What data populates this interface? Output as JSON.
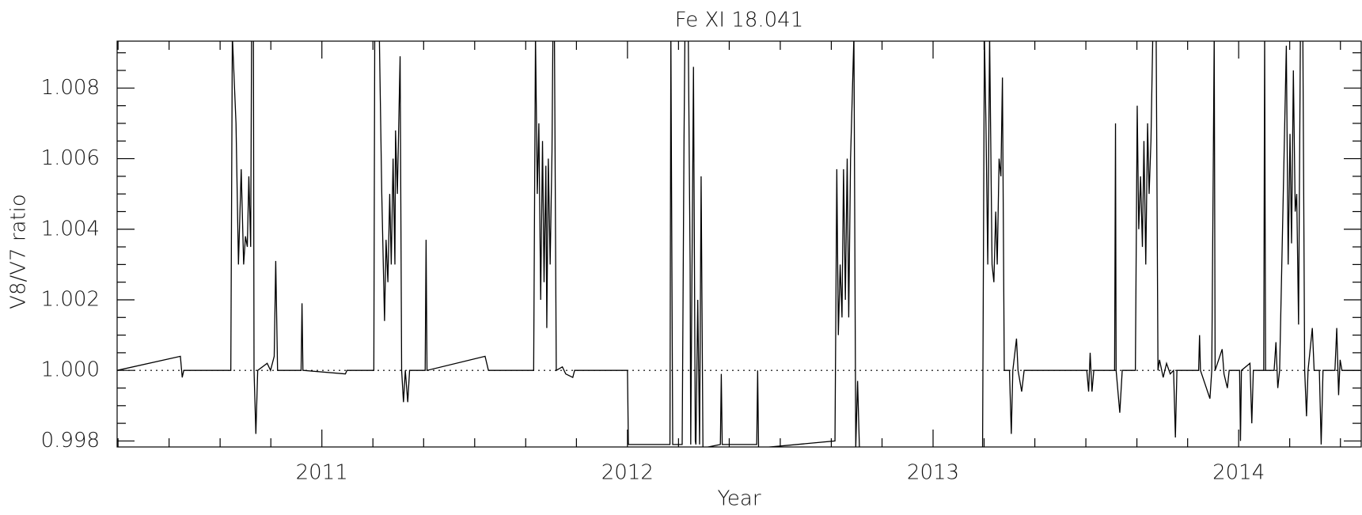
{
  "chart_data": {
    "type": "line",
    "title": "Fe XI 18.041",
    "x_label": "Year",
    "y_label": "V8/V7 ratio",
    "xlim": [
      2010.33,
      2014.401
    ],
    "ylim": [
      0.99783,
      1.00933
    ],
    "xticks": [
      2011,
      2012,
      2013,
      2014
    ],
    "xminorticks": [
      2010.333,
      2010.5,
      2010.667,
      2010.833,
      2011.167,
      2011.333,
      2011.5,
      2011.667,
      2011.833,
      2012.167,
      2012.333,
      2012.5,
      2012.667,
      2012.833,
      2013.167,
      2013.333,
      2013.5,
      2013.667,
      2013.833,
      2014.167,
      2014.333
    ],
    "yticks": [
      0.998,
      {
        "value": 1,
        "label": "1.000"
      },
      1.002,
      1.004,
      1.006,
      1.008
    ],
    "yminorticks": [
      0.9985,
      0.999,
      0.9995,
      1.0005,
      1.001,
      1.0015,
      1.0025,
      1.003,
      1.0035,
      1.0045,
      1.005,
      1.0055,
      1.0065,
      1.007,
      1.0075,
      1.0085,
      1.009
    ],
    "hline": 1,
    "color": "#000000",
    "x": [
      2010.33,
      2010.537,
      2010.543,
      2010.548,
      2010.702,
      2010.707,
      2010.719,
      2010.727,
      2010.736,
      2010.744,
      2010.75,
      2010.756,
      2010.761,
      2010.767,
      2010.77,
      2010.776,
      2010.778,
      2010.784,
      2010.79,
      2010.821,
      2010.832,
      2010.844,
      2010.849,
      2010.855,
      2010.932,
      2010.935,
      2010.938,
      2011.077,
      2011.082,
      2011.17,
      2011.173,
      2011.188,
      2011.196,
      2011.205,
      2011.21,
      2011.216,
      2011.222,
      2011.227,
      2011.233,
      2011.239,
      2011.241,
      2011.247,
      2011.256,
      2011.261,
      2011.267,
      2011.273,
      2011.281,
      2011.287,
      2011.338,
      2011.341,
      2011.344,
      2011.534,
      2011.545,
      2011.693,
      2011.699,
      2011.705,
      2011.71,
      2011.716,
      2011.722,
      2011.727,
      2011.733,
      2011.736,
      2011.741,
      2011.747,
      2011.753,
      2011.756,
      2011.761,
      2011.767,
      2011.787,
      2011.798,
      2011.821,
      2011.827,
      2012.0,
      2012.003,
      2012.139,
      2012.142,
      2012.148,
      2012.179,
      2012.185,
      2012.188,
      2012.199,
      2012.205,
      2012.207,
      2012.216,
      2012.222,
      2012.224,
      2012.23,
      2012.236,
      2012.241,
      2012.247,
      2012.304,
      2012.307,
      2012.31,
      2012.423,
      2012.426,
      2012.429,
      2012.679,
      2012.685,
      2012.69,
      2012.696,
      2012.702,
      2012.707,
      2012.713,
      2012.719,
      2012.724,
      2012.73,
      2012.741,
      2012.747,
      2012.753,
      2012.759,
      2013.162,
      2013.168,
      2013.173,
      2013.179,
      2013.185,
      2013.193,
      2013.199,
      2013.205,
      2013.21,
      2013.216,
      2013.222,
      2013.227,
      2013.233,
      2013.25,
      2013.256,
      2013.261,
      2013.273,
      2013.278,
      2013.29,
      2013.298,
      2013.503,
      2013.509,
      2013.514,
      2013.52,
      2013.526,
      2013.594,
      2013.597,
      2013.599,
      2013.611,
      2013.619,
      2013.662,
      2013.668,
      2013.673,
      2013.679,
      2013.685,
      2013.69,
      2013.696,
      2013.702,
      2013.707,
      2013.713,
      2013.719,
      2013.73,
      2013.736,
      2013.741,
      2013.753,
      2013.764,
      2013.776,
      2013.787,
      2013.793,
      2013.798,
      2013.869,
      2013.872,
      2013.875,
      2013.906,
      2013.912,
      2013.92,
      2013.923,
      2013.946,
      2013.952,
      2013.963,
      2013.969,
      2014.003,
      2014.006,
      2014.009,
      2014.037,
      2014.043,
      2014.048,
      2014.082,
      2014.085,
      2014.088,
      2014.116,
      2014.122,
      2014.128,
      2014.134,
      2014.156,
      2014.162,
      2014.168,
      2014.173,
      2014.179,
      2014.185,
      2014.19,
      2014.196,
      2014.202,
      2014.21,
      2014.216,
      2014.222,
      2014.227,
      2014.241,
      2014.247,
      2014.264,
      2014.27,
      2014.276,
      2014.315,
      2014.321,
      2014.327,
      2014.332,
      2014.338,
      2014.401
    ],
    "values": [
      1.0,
      1.0004,
      0.9998,
      1.0,
      1.0,
      1.0095,
      1.007,
      1.003,
      1.0057,
      1.003,
      1.0038,
      1.0035,
      1.0055,
      1.0035,
      1.0095,
      1.0095,
      1.0,
      0.9982,
      1.0,
      1.0002,
      1.0,
      1.0004,
      1.0031,
      1.0,
      1.0,
      1.0019,
      1.0,
      0.9999,
      1.0,
      1.0,
      1.0095,
      1.0095,
      1.005,
      1.0014,
      1.0037,
      1.0025,
      1.005,
      1.003,
      1.006,
      1.003,
      1.0068,
      1.005,
      1.0089,
      1.0,
      0.9991,
      1.0,
      0.9991,
      1.0,
      1.0,
      1.0037,
      1.0,
      1.0004,
      1.0,
      1.0,
      1.0095,
      1.005,
      1.007,
      1.002,
      1.0065,
      1.0025,
      1.0058,
      1.0012,
      1.006,
      1.003,
      1.0062,
      1.0095,
      1.0095,
      1.0,
      1.0001,
      0.9999,
      0.9998,
      1.0,
      1.0,
      0.9979,
      0.9979,
      1.0095,
      0.9979,
      0.9979,
      1.0065,
      1.0095,
      1.0095,
      1.003,
      0.9979,
      1.0086,
      0.998,
      0.9979,
      1.002,
      0.9979,
      1.0055,
      0.9978,
      0.9979,
      0.9999,
      0.9979,
      0.9979,
      1.0,
      0.9978,
      0.998,
      1.0057,
      1.001,
      1.003,
      1.0015,
      1.0057,
      1.002,
      1.006,
      1.0015,
      1.006,
      1.0095,
      0.9978,
      0.9997,
      0.9978,
      0.9978,
      1.0095,
      1.007,
      1.003,
      1.0095,
      1.003,
      1.0025,
      1.0045,
      1.003,
      1.006,
      1.0055,
      1.0083,
      1.0,
      1.0,
      0.9982,
      1.0,
      1.0009,
      1.0,
      0.9994,
      1.0,
      1.0,
      0.9994,
      1.0005,
      0.9994,
      1.0,
      1.0,
      1.007,
      1.0,
      0.9988,
      1.0,
      1.0,
      1.0075,
      1.004,
      1.0055,
      1.0035,
      1.0065,
      1.003,
      1.007,
      1.005,
      1.0065,
      1.0095,
      1.0095,
      1.0,
      1.0003,
      0.9998,
      1.0002,
      0.9999,
      1.0,
      0.9981,
      1.0,
      1.0,
      1.001,
      1.0,
      0.9992,
      1.0,
      1.0095,
      1.0,
      1.0006,
      0.9999,
      0.9995,
      1.0,
      1.0,
      0.998,
      1.0,
      1.0002,
      0.9985,
      1.0,
      1.0,
      1.0095,
      1.0,
      1.0,
      1.0008,
      0.9995,
      1.0,
      1.0092,
      1.003,
      1.0067,
      1.0036,
      1.0085,
      1.0045,
      1.005,
      1.0013,
      1.0095,
      1.0095,
      1.0,
      0.9987,
      1.0,
      1.0012,
      1.0,
      1.0,
      0.9979,
      1.0,
      1.0,
      1.0012,
      0.9993,
      1.0003,
      1.0,
      1.0
    ]
  }
}
